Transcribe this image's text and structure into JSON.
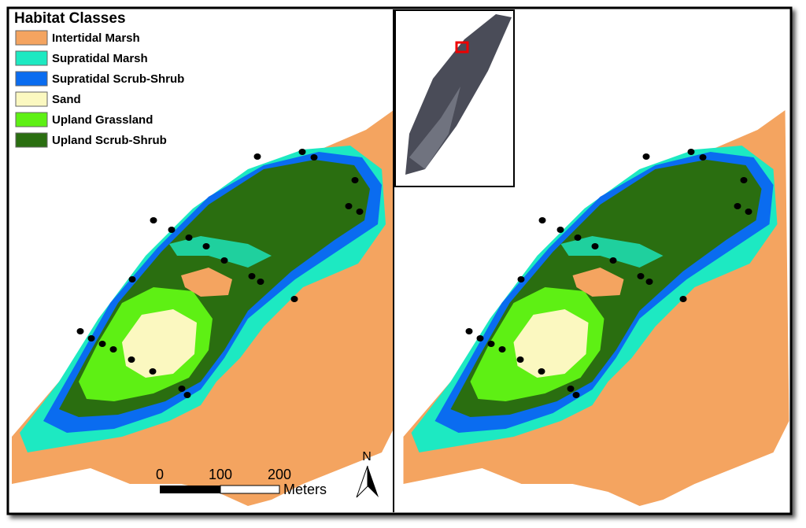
{
  "legend": {
    "title": "Habitat Classes",
    "items": [
      {
        "label": "Intertidal Marsh",
        "color": "#f4a460"
      },
      {
        "label": "Supratidal Marsh",
        "color": "#1de9c2"
      },
      {
        "label": "Supratidal Scrub-Shrub",
        "color": "#0a6cf0"
      },
      {
        "label": "Sand",
        "color": "#fbf8c0"
      },
      {
        "label": "Upland Grassland",
        "color": "#5ef014"
      },
      {
        "label": "Upland Scrub-Shrub",
        "color": "#2a6e10"
      }
    ]
  },
  "scale_bar": {
    "labels": [
      "0",
      "100",
      "200"
    ],
    "unit": "Meters"
  },
  "north_arrow": {
    "label": "N"
  }
}
